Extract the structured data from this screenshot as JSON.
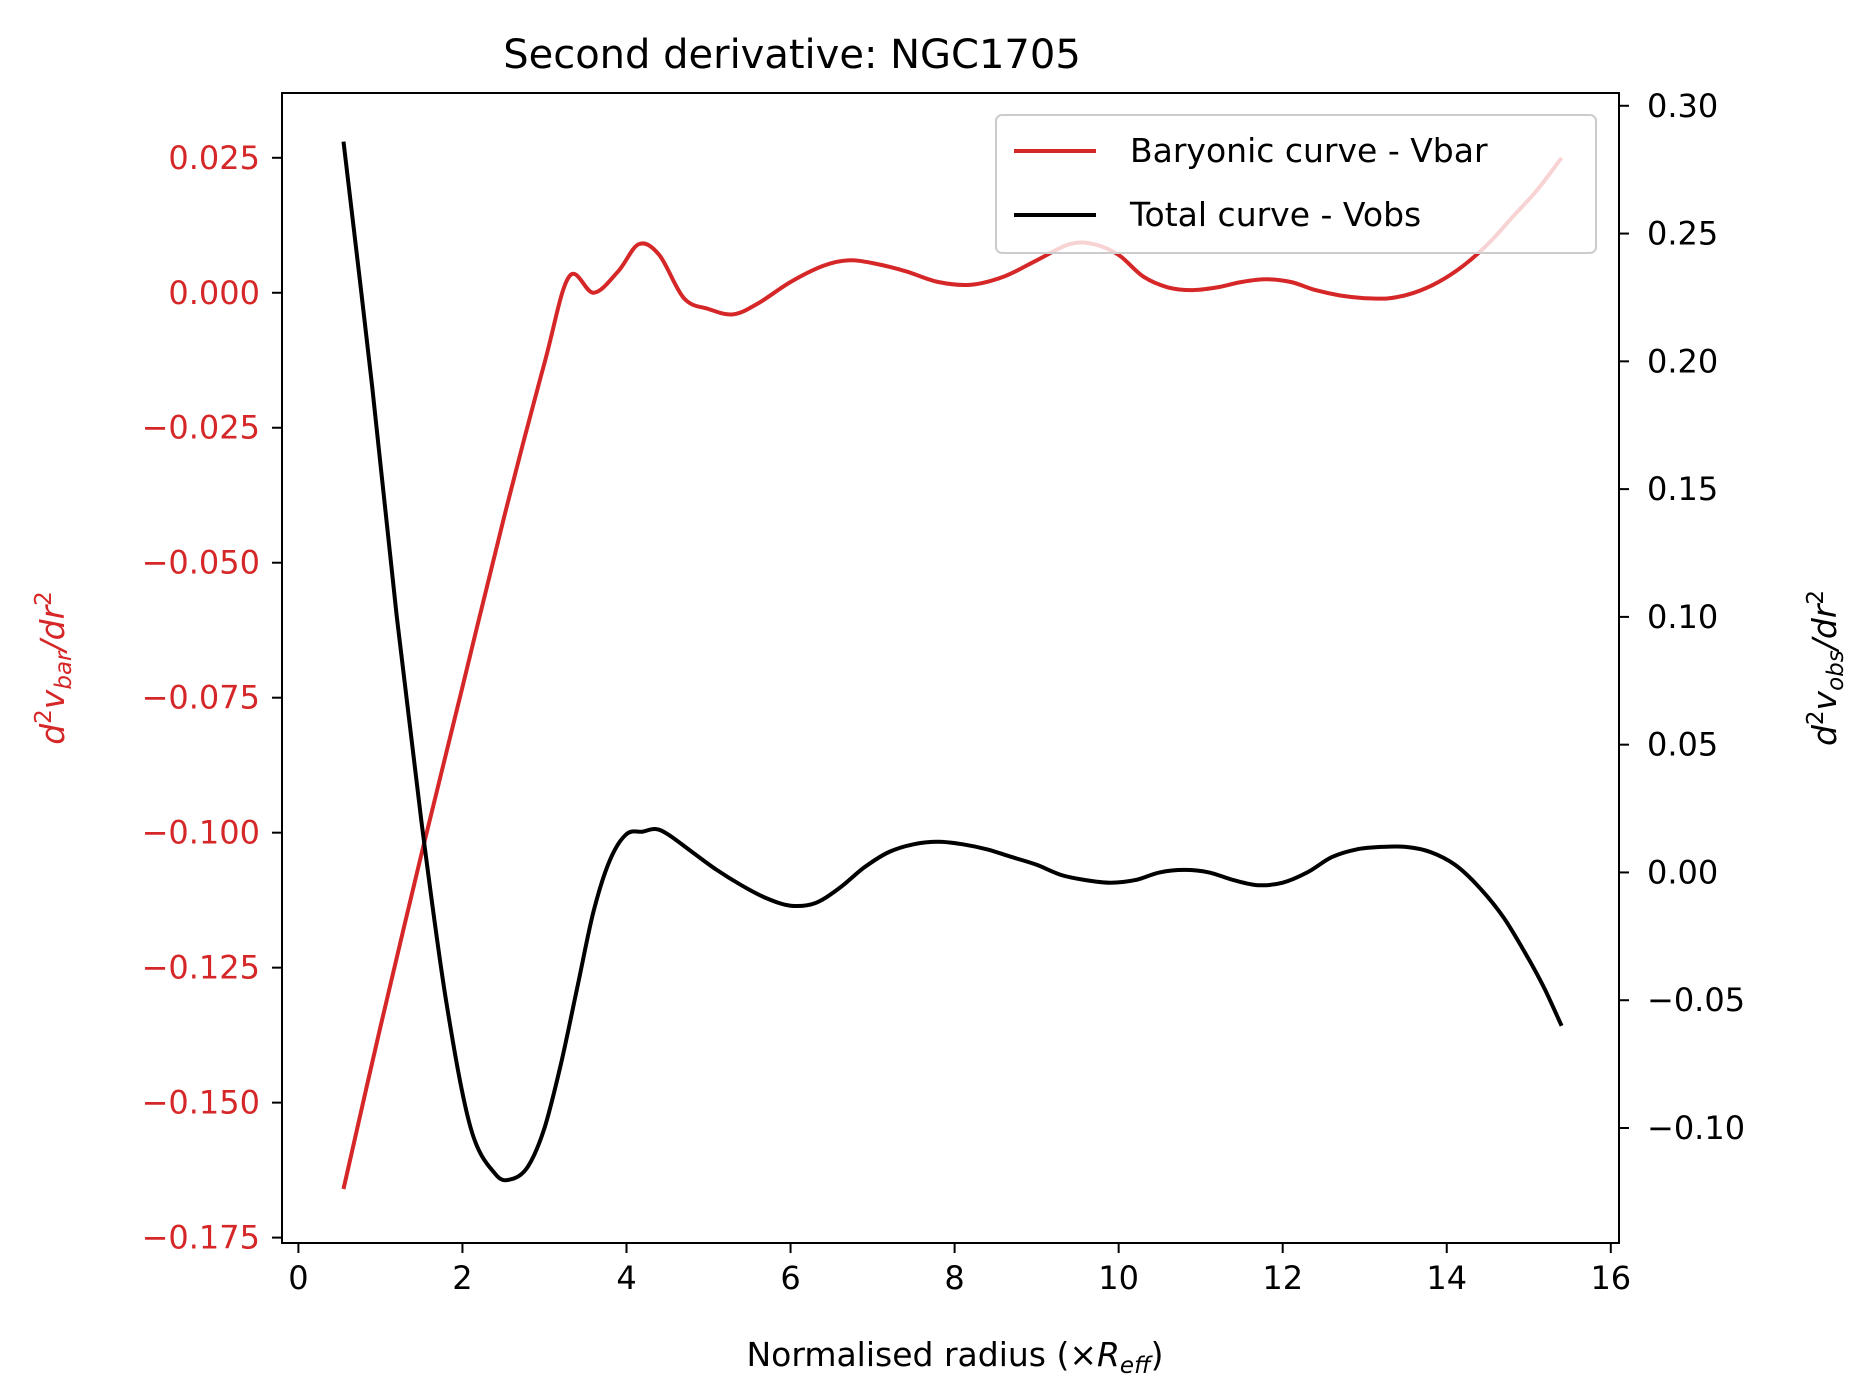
{
  "chart_data": {
    "type": "line",
    "title": "Second derivative: NGC1705",
    "xlabel": "Normalised radius (×",
    "xlabel_sym": "R",
    "xlabel_sub": "eff",
    "xlabel_close": ")",
    "ylabel_left": {
      "prefix": "d",
      "exp": "2",
      "var": "v",
      "sub": "bar",
      "mid": "/dr",
      "exp2": "2"
    },
    "ylabel_right": {
      "prefix": "d",
      "exp": "2",
      "var": "v",
      "sub": "obs",
      "mid": "/dr",
      "exp2": "2"
    },
    "xlim": [
      -0.2,
      16.1
    ],
    "ylim_left": [
      -0.176,
      0.037
    ],
    "ylim_right": [
      -0.145,
      0.305
    ],
    "x_ticks": [
      "0",
      "2",
      "4",
      "6",
      "8",
      "10",
      "12",
      "14",
      "16"
    ],
    "y_ticks_left": [
      "0.025",
      "0.000",
      "−0.025",
      "−0.050",
      "−0.075",
      "−0.100",
      "−0.125",
      "−0.150",
      "−0.175"
    ],
    "y_ticks_right": [
      "0.30",
      "0.25",
      "0.20",
      "0.15",
      "0.10",
      "0.05",
      "0.00",
      "−0.05",
      "−0.10"
    ],
    "grid": false,
    "legend": "top-right",
    "colors": {
      "left_axis": "#d62728",
      "vbar": "#d62728",
      "vobs": "#000000",
      "frame": "#000000"
    },
    "series": [
      {
        "name": "Baryonic curve - Vbar",
        "axis": "left",
        "x": [
          0.55,
          1.0,
          1.5,
          2.0,
          2.5,
          3.0,
          3.3,
          3.6,
          3.9,
          4.15,
          4.4,
          4.7,
          5.0,
          5.3,
          5.6,
          6.0,
          6.4,
          6.7,
          7.0,
          7.4,
          7.8,
          8.2,
          8.6,
          9.0,
          9.4,
          9.7,
          10.0,
          10.3,
          10.6,
          10.9,
          11.2,
          11.5,
          11.8,
          12.1,
          12.4,
          12.7,
          13.0,
          13.3,
          13.6,
          13.9,
          14.2,
          14.5,
          14.8,
          15.1,
          15.4
        ],
        "values": [
          -0.166,
          -0.136,
          -0.104,
          -0.073,
          -0.042,
          -0.013,
          0.003,
          0.0,
          0.004,
          0.009,
          0.007,
          -0.001,
          -0.003,
          -0.004,
          -0.002,
          0.002,
          0.005,
          0.006,
          0.0055,
          0.004,
          0.002,
          0.0015,
          0.003,
          0.006,
          0.009,
          0.009,
          0.007,
          0.003,
          0.001,
          0.0005,
          0.001,
          0.002,
          0.0025,
          0.002,
          0.0005,
          -0.0005,
          -0.001,
          -0.001,
          0.0,
          0.002,
          0.005,
          0.009,
          0.014,
          0.019,
          0.025
        ]
      },
      {
        "name": "Total curve - Vobs",
        "axis": "right",
        "x": [
          0.55,
          0.9,
          1.2,
          1.5,
          1.8,
          2.1,
          2.4,
          2.6,
          2.8,
          3.0,
          3.2,
          3.4,
          3.6,
          3.8,
          4.0,
          4.2,
          4.35,
          4.5,
          4.8,
          5.1,
          5.4,
          5.7,
          6.0,
          6.3,
          6.6,
          6.9,
          7.2,
          7.5,
          7.8,
          8.1,
          8.4,
          8.7,
          9.0,
          9.3,
          9.6,
          9.9,
          10.2,
          10.5,
          10.8,
          11.1,
          11.4,
          11.7,
          12.0,
          12.3,
          12.6,
          12.9,
          13.2,
          13.5,
          13.8,
          14.1,
          14.4,
          14.7,
          15.0,
          15.2,
          15.4
        ],
        "values": [
          0.286,
          0.19,
          0.1,
          0.02,
          -0.05,
          -0.1,
          -0.118,
          -0.12,
          -0.115,
          -0.1,
          -0.075,
          -0.045,
          -0.015,
          0.005,
          0.015,
          0.016,
          0.017,
          0.015,
          0.008,
          0.001,
          -0.005,
          -0.01,
          -0.013,
          -0.012,
          -0.006,
          0.002,
          0.008,
          0.011,
          0.012,
          0.011,
          0.009,
          0.006,
          0.003,
          -0.001,
          -0.003,
          -0.004,
          -0.003,
          0.0,
          0.001,
          0.0,
          -0.003,
          -0.005,
          -0.004,
          0.0,
          0.006,
          0.009,
          0.01,
          0.01,
          0.008,
          0.003,
          -0.006,
          -0.018,
          -0.034,
          -0.046,
          -0.06
        ]
      }
    ]
  }
}
